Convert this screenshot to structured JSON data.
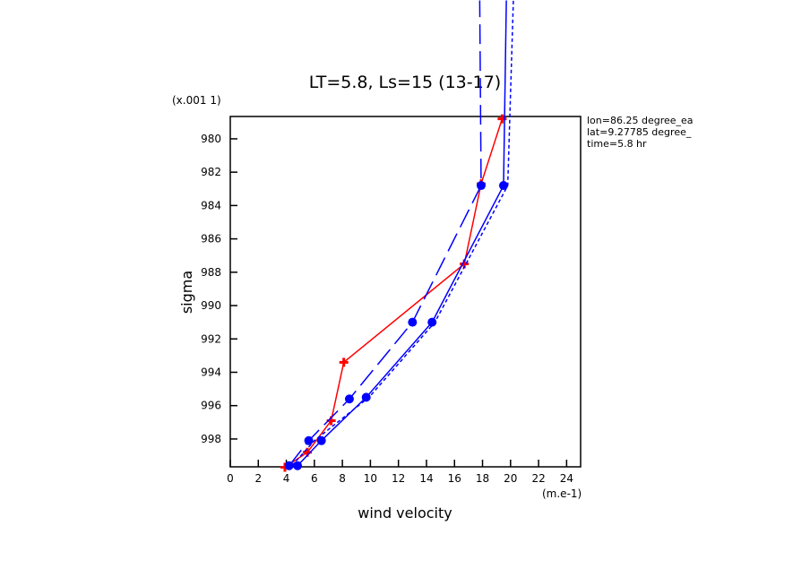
{
  "chart_data": {
    "type": "line",
    "title": "LT=5.8, Ls=15 (13-17)",
    "x_label": "wind velocity",
    "y_label": "sigma",
    "x_units": "(m.e-1)",
    "y_units": "(x.001 1)",
    "annotations": [
      "lon=86.25 degree_ea",
      "lat=9.27785 degree_",
      "time=5.8 hr"
    ],
    "xlim": [
      0,
      25
    ],
    "ylim": [
      978.66,
      999.67
    ],
    "xticks": [
      0,
      2,
      4,
      6,
      8,
      10,
      12,
      14,
      16,
      18,
      20,
      22,
      24
    ],
    "yticks": [
      980,
      982,
      984,
      986,
      988,
      990,
      992,
      994,
      996,
      998
    ],
    "series": [
      {
        "color": "#ff0000",
        "dash": "solid",
        "marker": "plus",
        "x": [
          3.9,
          5.5,
          7.2,
          8.1,
          16.7,
          17.9,
          19.4
        ],
        "values": [
          999.7,
          998.8,
          996.9,
          993.4,
          987.5,
          982.7,
          978.8
        ]
      },
      {
        "color": "#0000ff",
        "dash": "solid",
        "marker": "circle",
        "x": [
          4.8,
          6.5,
          9.7,
          14.4,
          19.5,
          19.7
        ],
        "values": [
          999.6,
          998.1,
          995.5,
          991.0,
          982.8,
          971.7
        ]
      },
      {
        "color": "#0000ff",
        "dash": "long",
        "marker": "circle",
        "x": [
          4.2,
          5.6,
          8.5,
          13.0,
          17.9,
          17.8
        ],
        "values": [
          999.6,
          998.1,
          995.6,
          991.0,
          982.8,
          971.7
        ]
      },
      {
        "color": "#0000ff",
        "dash": "short",
        "marker": "none",
        "x": [
          4.4,
          6.0,
          9.9,
          14.6,
          19.8,
          20.2
        ],
        "values": [
          999.6,
          998.1,
          995.5,
          991.0,
          982.8,
          971.7
        ]
      }
    ]
  }
}
